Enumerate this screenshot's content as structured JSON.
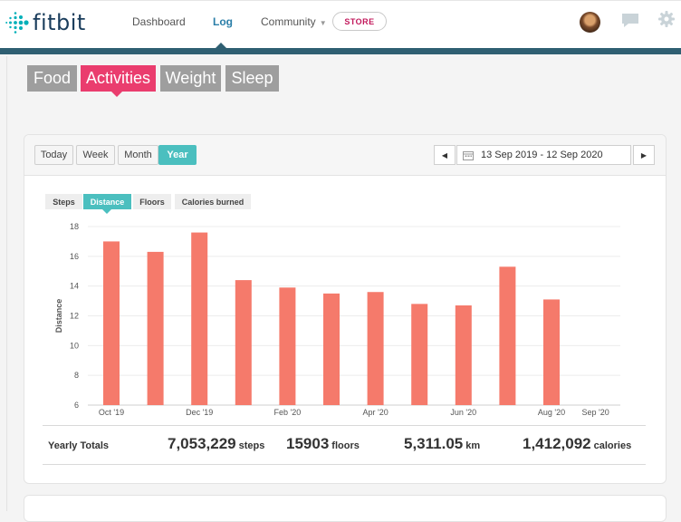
{
  "brand": {
    "name": "fitbit"
  },
  "nav": {
    "links": [
      "Dashboard",
      "Log",
      "Community"
    ],
    "store_label": "STORE"
  },
  "categories": {
    "tabs": [
      "Food",
      "Activities",
      "Weight",
      "Sleep"
    ],
    "active": "Activities"
  },
  "range": {
    "buttons": [
      "Today",
      "Week",
      "Month",
      "Year"
    ],
    "active": "Year",
    "date_range": "13 Sep 2019 - 12 Sep 2020"
  },
  "metrics": {
    "tabs": [
      "Steps",
      "Distance",
      "Floors",
      "Calories burned"
    ],
    "active": "Distance"
  },
  "chart_data": {
    "type": "bar",
    "ylabel": "Distance",
    "ylim": [
      6,
      18
    ],
    "yticks": [
      6,
      8,
      10,
      12,
      14,
      16,
      18
    ],
    "grid": true,
    "color": "#f57a6b",
    "x_tick_labels": [
      "Oct '19",
      "Dec '19",
      "Feb '20",
      "Apr '20",
      "Jun '20",
      "Aug '20",
      "Sep '20"
    ],
    "months": [
      "Oct 2019",
      "Nov 2019",
      "Dec 2019",
      "Jan 2020",
      "Feb 2020",
      "Mar 2020",
      "Apr 2020",
      "May 2020",
      "Jun 2020",
      "Jul 2020",
      "Aug 2020",
      "Sep 2020"
    ],
    "values": [
      17.0,
      16.3,
      17.6,
      14.4,
      13.9,
      13.5,
      13.6,
      12.8,
      12.7,
      15.3,
      13.1,
      null
    ]
  },
  "totals": {
    "label": "Yearly Totals",
    "steps": {
      "value": "7,053,229",
      "unit": "steps"
    },
    "floors": {
      "value": "15903",
      "unit": "floors"
    },
    "distance": {
      "value": "5,311.05",
      "unit": "km"
    },
    "calories": {
      "value": "1,412,092",
      "unit": "calories"
    }
  },
  "colors": {
    "accent_pink": "#ea3d6e",
    "accent_teal": "#4bbfbf",
    "bar_coral": "#f57a6b",
    "nav_stripe": "#2f5f72"
  }
}
